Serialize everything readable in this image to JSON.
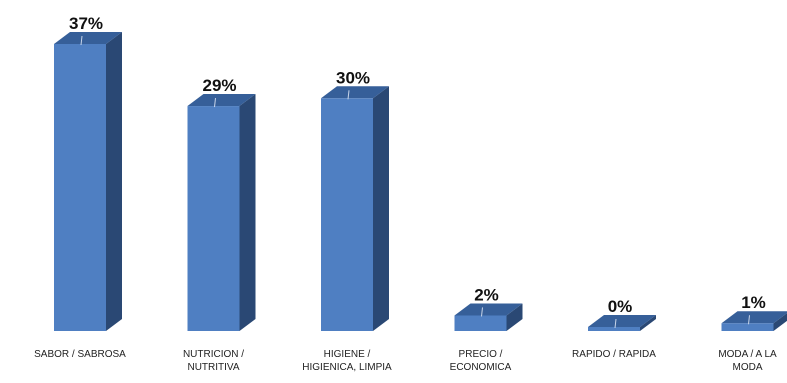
{
  "chart_data": {
    "type": "bar",
    "categories": [
      [
        "SABOR / SABROSA"
      ],
      [
        "NUTRICION /",
        "NUTRITIVA"
      ],
      [
        "HIGIENE /",
        "HIGIENICA, LIMPIA"
      ],
      [
        "PRECIO /",
        "ECONOMICA"
      ],
      [
        "RAPIDO / RAPIDA"
      ],
      [
        "MODA / A LA",
        "MODA"
      ]
    ],
    "values": [
      37,
      29,
      30,
      2,
      0,
      1
    ],
    "value_labels": [
      "37%",
      "29%",
      "30%",
      "2%",
      "0%",
      "1%"
    ],
    "ylim": [
      0,
      37
    ],
    "grid": false,
    "style": "3d-column",
    "colors": {
      "front": "#4f7fc2",
      "top": "#365f99",
      "side": "#2a4874"
    }
  }
}
